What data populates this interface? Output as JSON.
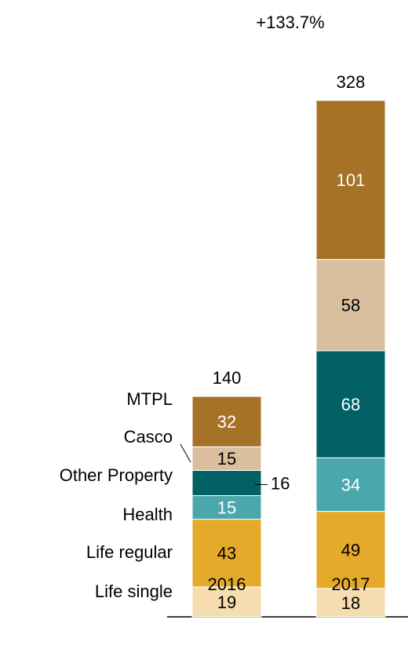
{
  "chart_data": {
    "type": "stacked_bar",
    "annotation": "+133.7%",
    "categories": [
      "2016",
      "2017"
    ],
    "totals": [
      140,
      328
    ],
    "series": [
      {
        "name": "Life single",
        "color": "#f5ddb0",
        "values": [
          19,
          18
        ]
      },
      {
        "name": "Life regular",
        "color": "#e5aa2a",
        "values": [
          43,
          49
        ]
      },
      {
        "name": "Health",
        "color": "#4aa8ad",
        "values": [
          15,
          34
        ]
      },
      {
        "name": "Other Property",
        "color": "#006064",
        "values": [
          16,
          68
        ]
      },
      {
        "name": "Casco",
        "color": "#d9bf9e",
        "values": [
          15,
          58
        ]
      },
      {
        "name": "MTPL",
        "color": "#a57228",
        "values": [
          32,
          101
        ]
      }
    ]
  }
}
